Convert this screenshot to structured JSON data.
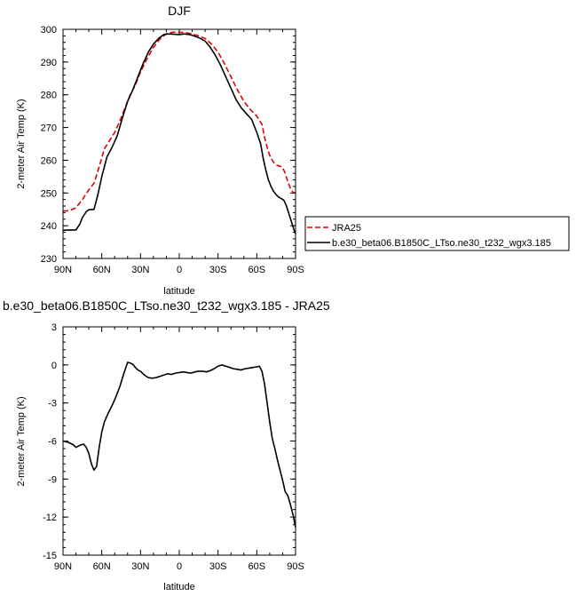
{
  "chart_data": [
    {
      "type": "line",
      "title": "DJF",
      "xlabel": "latitude",
      "ylabel": "2-meter Air Temp (K)",
      "xlim": [
        -90,
        90
      ],
      "ylim": [
        230,
        300
      ],
      "xticks": [
        -90,
        -60,
        -30,
        0,
        30,
        60,
        90
      ],
      "xtick_labels": [
        "90N",
        "60N",
        "30N",
        "0",
        "30S",
        "60S",
        "90S"
      ],
      "yticks": [
        230,
        240,
        250,
        260,
        270,
        280,
        290,
        300
      ],
      "ytick_labels": [
        "230",
        "240",
        "250",
        "260",
        "270",
        "280",
        "290",
        "300"
      ],
      "legend": "right",
      "series": [
        {
          "name": "JRA25",
          "color": "#e00000",
          "dash": "dashed",
          "x": [
            -90,
            -85,
            -80,
            -75,
            -70,
            -66,
            -62,
            -58,
            -54,
            -50,
            -46,
            -42,
            -38,
            -34,
            -30,
            -25,
            -20,
            -15,
            -10,
            -5,
            0,
            5,
            10,
            15,
            20,
            25,
            30,
            35,
            40,
            45,
            50,
            55,
            60,
            64,
            66,
            68,
            70,
            72,
            74,
            76,
            78,
            80,
            82,
            84,
            86,
            88,
            90
          ],
          "y": [
            244.5,
            244.6,
            245.5,
            248,
            251,
            253,
            258,
            263.5,
            266,
            268.5,
            272,
            276,
            280,
            283,
            287,
            291,
            294.5,
            297,
            298.7,
            299.1,
            299.1,
            299.0,
            298.6,
            298.0,
            297.2,
            295.5,
            293,
            289.5,
            285.5,
            281.5,
            278,
            275.5,
            273.5,
            271,
            267,
            264,
            261.5,
            260,
            258.8,
            258.4,
            258.2,
            257.8,
            256,
            253.5,
            251.5,
            250.2,
            250
          ]
        },
        {
          "name": "b.e30_beta06.B1850C_LTso.ne30_t232_wgx3.185",
          "color": "#000000",
          "dash": "solid",
          "x": [
            -90,
            -85,
            -80,
            -77,
            -75,
            -72,
            -70,
            -66,
            -63,
            -60,
            -56,
            -52,
            -48,
            -44,
            -40,
            -36,
            -32,
            -28,
            -24,
            -20,
            -16,
            -12,
            -8,
            -4,
            0,
            4,
            8,
            12,
            16,
            20,
            24,
            28,
            32,
            36,
            40,
            44,
            48,
            52,
            56,
            60,
            63,
            65,
            67,
            69,
            71,
            73,
            75,
            77,
            79,
            81,
            83,
            85,
            87,
            89,
            90
          ],
          "y": [
            238.6,
            238.7,
            238.7,
            240.5,
            242.5,
            244.3,
            244.9,
            245.0,
            249.5,
            255,
            261,
            264,
            267.5,
            273,
            278,
            281.5,
            285.5,
            289.5,
            293,
            295.5,
            297.2,
            298.4,
            298.6,
            298.5,
            298.4,
            298.6,
            298.4,
            297.9,
            297.3,
            296.4,
            294.5,
            292,
            289,
            285.5,
            282,
            278.5,
            276,
            274.2,
            272.5,
            268.5,
            265,
            260.5,
            257,
            254,
            252,
            250.5,
            249.5,
            248.7,
            248.3,
            247.8,
            246,
            243.5,
            241,
            238.5,
            237.5
          ]
        }
      ]
    },
    {
      "type": "line",
      "title": "b.e30_beta06.B1850C_LTso.ne30_t232_wgx3.185 - JRA25",
      "xlabel": "latitude",
      "ylabel": "2-meter Air Temp (K)",
      "xlim": [
        -90,
        90
      ],
      "ylim": [
        -15,
        3
      ],
      "xticks": [
        -90,
        -60,
        -30,
        0,
        30,
        60,
        90
      ],
      "xtick_labels": [
        "90N",
        "60N",
        "30N",
        "0",
        "30S",
        "60S",
        "90S"
      ],
      "yticks": [
        -15,
        -12,
        -9,
        -6,
        -3,
        0,
        3
      ],
      "ytick_labels": [
        "-15",
        "-12",
        "-9",
        "-6",
        "-3",
        "0",
        "3"
      ],
      "series": [
        {
          "color": "#000000",
          "dash": "solid",
          "x": [
            -90,
            -86,
            -84,
            -82,
            -80,
            -78,
            -76,
            -74,
            -72,
            -70,
            -68,
            -66,
            -64,
            -62,
            -60,
            -58,
            -55,
            -52,
            -49,
            -46,
            -43,
            -40,
            -38,
            -36,
            -34,
            -32,
            -30,
            -27,
            -24,
            -21,
            -18,
            -15,
            -12,
            -9,
            -6,
            -3,
            0,
            3,
            6,
            9,
            12,
            15,
            18,
            21,
            24,
            27,
            30,
            33,
            36,
            39,
            42,
            45,
            48,
            51,
            54,
            57,
            60,
            62,
            64,
            66,
            68,
            70,
            72,
            74,
            76,
            78,
            80,
            82,
            84,
            86,
            88,
            90
          ],
          "y": [
            -6.0,
            -6.1,
            -6.2,
            -6.3,
            -6.5,
            -6.4,
            -6.3,
            -6.25,
            -6.5,
            -7.0,
            -7.8,
            -8.3,
            -8.0,
            -6.5,
            -5.3,
            -4.5,
            -3.8,
            -3.2,
            -2.5,
            -1.7,
            -0.7,
            0.2,
            0.15,
            0.05,
            -0.2,
            -0.4,
            -0.5,
            -0.8,
            -1.0,
            -1.05,
            -1.0,
            -0.9,
            -0.8,
            -0.7,
            -0.75,
            -0.65,
            -0.6,
            -0.55,
            -0.6,
            -0.65,
            -0.55,
            -0.5,
            -0.5,
            -0.55,
            -0.45,
            -0.3,
            -0.1,
            0.0,
            -0.1,
            -0.2,
            -0.3,
            -0.35,
            -0.4,
            -0.3,
            -0.25,
            -0.2,
            -0.15,
            -0.1,
            -0.5,
            -1.5,
            -3.0,
            -4.5,
            -5.8,
            -6.6,
            -7.5,
            -8.3,
            -9.1,
            -10.0,
            -10.3,
            -11.0,
            -11.8,
            -12.8
          ]
        }
      ]
    }
  ]
}
